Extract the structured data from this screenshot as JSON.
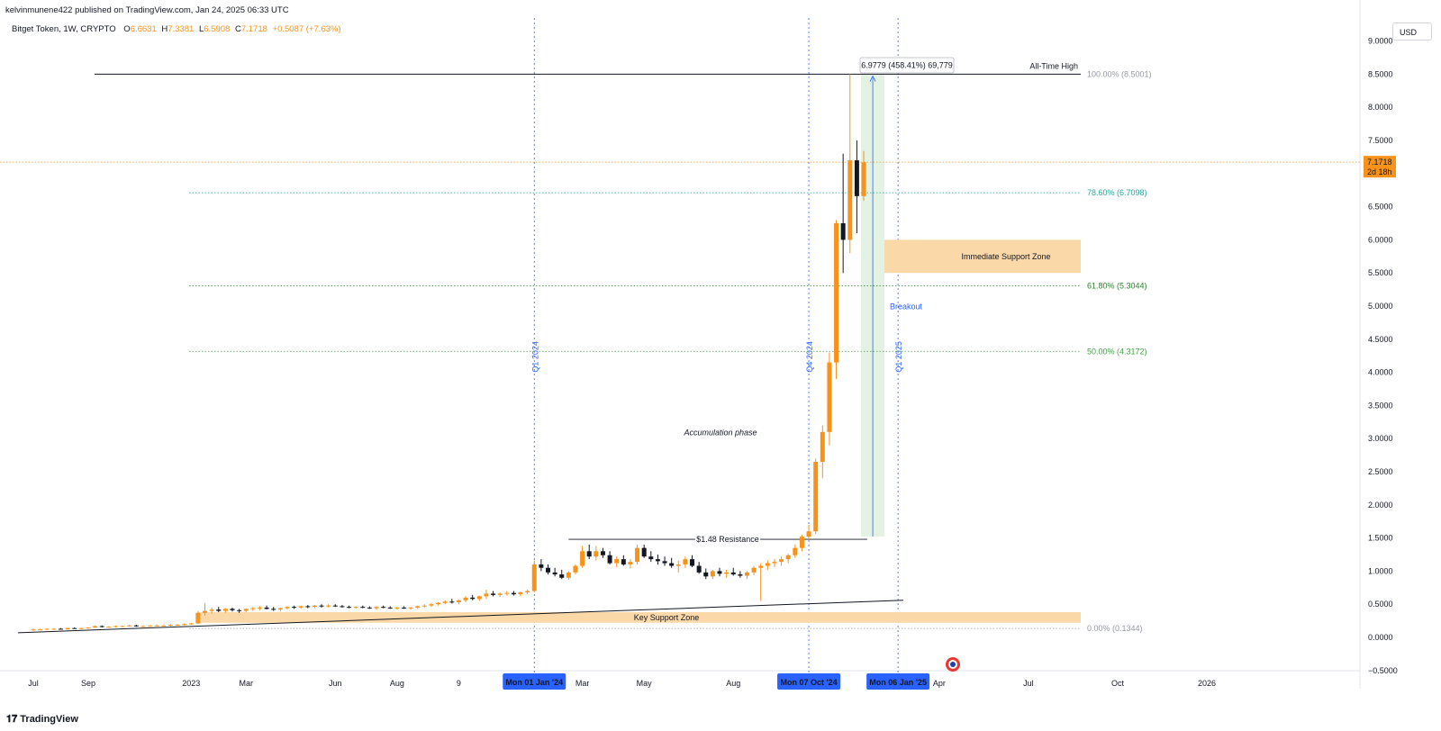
{
  "header": {
    "published": "kelvinmunene422 published on TradingView.com, Jan 24, 2025 06:33 UTC",
    "symbol": "Bitget Token, 1W, CRYPTO",
    "ohlc": {
      "o_label": "O",
      "o": "6.6631",
      "h_label": "H",
      "h": "7.3381",
      "l_label": "L",
      "l": "6.5908",
      "c_label": "C",
      "c": "7.1718",
      "change": "+0.5087 (+7.63%)"
    },
    "currency_button": "USD"
  },
  "footer": {
    "logo_text": "TradingView"
  },
  "colors": {
    "up": "#f7931a",
    "down": "#131722",
    "fib_786": "#26a69a",
    "fib_618": "#2e7d32",
    "fib_50": "#43a047",
    "quarter_line": "#2962ff",
    "support_zone": "#fbd8a8",
    "breakout_fill": "#e3f2e3",
    "price_tag": "#f7931a",
    "date_badge": "#2962ff"
  },
  "chart_data": {
    "type": "candlestick",
    "title": "Bitget Token, 1W, CRYPTO",
    "ylim": [
      -0.5,
      9.0
    ],
    "y_ticks": [
      "9.0000",
      "8.5000",
      "8.0000",
      "7.5000",
      "7.0000",
      "6.5000",
      "6.0000",
      "5.5000",
      "5.0000",
      "4.5000",
      "4.0000",
      "3.5000",
      "3.0000",
      "2.5000",
      "2.0000",
      "1.5000",
      "1.0000",
      "0.5000",
      "0.0000",
      "−0.5000"
    ],
    "y_tick_values": [
      9.0,
      8.5,
      8.0,
      7.5,
      7.0,
      6.5,
      6.0,
      5.5,
      5.0,
      4.5,
      4.0,
      3.5,
      3.0,
      2.5,
      2.0,
      1.5,
      1.0,
      0.5,
      0.0,
      -0.5
    ],
    "x_ticks": [
      {
        "label": "Jul",
        "week": 0
      },
      {
        "label": "Sep",
        "week": 8
      },
      {
        "label": "2023",
        "week": 23
      },
      {
        "label": "Mar",
        "week": 31
      },
      {
        "label": "Jun",
        "week": 44
      },
      {
        "label": "Aug",
        "week": 53
      },
      {
        "label": "9",
        "week": 62
      },
      {
        "label": "Mar",
        "week": 80
      },
      {
        "label": "May",
        "week": 89
      },
      {
        "label": "Aug",
        "week": 102
      },
      {
        "label": "Apr",
        "week": 132
      },
      {
        "label": "Jul",
        "week": 145
      },
      {
        "label": "Oct",
        "week": 158
      },
      {
        "label": "2026",
        "week": 171
      }
    ],
    "date_badges": [
      {
        "label": "Mon 01 Jan '24",
        "week": 73
      },
      {
        "label": "Mon 07 Oct '24",
        "week": 113
      },
      {
        "label": "Mon 06 Jan '25",
        "week": 126
      }
    ],
    "quarter_lines": [
      {
        "label": "Q1 2024",
        "week": 73
      },
      {
        "label": "Q4 2024",
        "week": 113
      },
      {
        "label": "Q1 2025",
        "week": 126
      }
    ],
    "last_price": {
      "value": "7.1718",
      "countdown": "2d 18h",
      "y": 7.1718
    },
    "fib_levels": [
      {
        "label": "100.00% (8.5001)",
        "y": 8.5001
      },
      {
        "label": "78.60% (6.7098)",
        "y": 6.7098
      },
      {
        "label": "61.80% (5.3044)",
        "y": 5.3044
      },
      {
        "label": "50.00% (4.3172)",
        "y": 4.3172
      },
      {
        "label": "0.00% (0.1344)",
        "y": 0.1344
      }
    ],
    "all_time_high": {
      "label": "All-Time High",
      "y": 8.5001
    },
    "resistance": {
      "label": "$1.48 Resistance",
      "y": 1.48
    },
    "immediate_support_zone": {
      "label": "Immediate Support Zone",
      "y_low": 5.5,
      "y_high": 6.0
    },
    "key_support_zone": {
      "label": "Key Support Zone",
      "y_low": 0.22,
      "y_high": 0.38
    },
    "measure": {
      "label": "6.9779 (458.41%) 69,779",
      "from": 1.5222,
      "to": 8.5001
    },
    "annotations": {
      "breakout": "Breakout",
      "accumulation": "Accumulation phase"
    },
    "candles": [
      [
        0.11,
        0.13,
        0.1,
        0.12
      ],
      [
        0.12,
        0.13,
        0.11,
        0.12
      ],
      [
        0.12,
        0.13,
        0.11,
        0.13
      ],
      [
        0.13,
        0.14,
        0.12,
        0.13
      ],
      [
        0.13,
        0.14,
        0.12,
        0.12
      ],
      [
        0.12,
        0.14,
        0.12,
        0.14
      ],
      [
        0.14,
        0.15,
        0.13,
        0.13
      ],
      [
        0.13,
        0.14,
        0.12,
        0.14
      ],
      [
        0.14,
        0.15,
        0.13,
        0.15
      ],
      [
        0.15,
        0.18,
        0.14,
        0.17
      ],
      [
        0.17,
        0.18,
        0.15,
        0.16
      ],
      [
        0.16,
        0.17,
        0.15,
        0.16
      ],
      [
        0.16,
        0.18,
        0.15,
        0.17
      ],
      [
        0.17,
        0.18,
        0.16,
        0.17
      ],
      [
        0.17,
        0.19,
        0.16,
        0.18
      ],
      [
        0.18,
        0.19,
        0.16,
        0.17
      ],
      [
        0.17,
        0.18,
        0.16,
        0.17
      ],
      [
        0.17,
        0.18,
        0.16,
        0.18
      ],
      [
        0.18,
        0.19,
        0.17,
        0.18
      ],
      [
        0.18,
        0.19,
        0.17,
        0.18
      ],
      [
        0.18,
        0.2,
        0.17,
        0.19
      ],
      [
        0.19,
        0.2,
        0.18,
        0.19
      ],
      [
        0.19,
        0.21,
        0.18,
        0.2
      ],
      [
        0.2,
        0.22,
        0.19,
        0.21
      ],
      [
        0.21,
        0.4,
        0.2,
        0.37
      ],
      [
        0.37,
        0.52,
        0.33,
        0.4
      ],
      [
        0.4,
        0.45,
        0.36,
        0.42
      ],
      [
        0.42,
        0.46,
        0.38,
        0.4
      ],
      [
        0.4,
        0.44,
        0.37,
        0.43
      ],
      [
        0.43,
        0.45,
        0.39,
        0.41
      ],
      [
        0.41,
        0.43,
        0.37,
        0.4
      ],
      [
        0.4,
        0.44,
        0.38,
        0.43
      ],
      [
        0.43,
        0.46,
        0.4,
        0.44
      ],
      [
        0.44,
        0.47,
        0.41,
        0.45
      ],
      [
        0.45,
        0.48,
        0.42,
        0.43
      ],
      [
        0.43,
        0.46,
        0.4,
        0.42
      ],
      [
        0.42,
        0.45,
        0.39,
        0.44
      ],
      [
        0.44,
        0.47,
        0.42,
        0.46
      ],
      [
        0.46,
        0.48,
        0.43,
        0.45
      ],
      [
        0.45,
        0.48,
        0.43,
        0.47
      ],
      [
        0.47,
        0.49,
        0.44,
        0.46
      ],
      [
        0.46,
        0.49,
        0.44,
        0.48
      ],
      [
        0.48,
        0.5,
        0.45,
        0.47
      ],
      [
        0.47,
        0.5,
        0.45,
        0.48
      ],
      [
        0.48,
        0.5,
        0.46,
        0.47
      ],
      [
        0.47,
        0.49,
        0.45,
        0.46
      ],
      [
        0.46,
        0.48,
        0.44,
        0.45
      ],
      [
        0.45,
        0.47,
        0.43,
        0.46
      ],
      [
        0.46,
        0.48,
        0.44,
        0.45
      ],
      [
        0.45,
        0.47,
        0.43,
        0.44
      ],
      [
        0.44,
        0.47,
        0.42,
        0.46
      ],
      [
        0.46,
        0.48,
        0.44,
        0.45
      ],
      [
        0.45,
        0.47,
        0.43,
        0.44
      ],
      [
        0.44,
        0.46,
        0.42,
        0.45
      ],
      [
        0.45,
        0.47,
        0.43,
        0.44
      ],
      [
        0.44,
        0.46,
        0.42,
        0.45
      ],
      [
        0.45,
        0.48,
        0.43,
        0.47
      ],
      [
        0.47,
        0.5,
        0.45,
        0.48
      ],
      [
        0.48,
        0.52,
        0.46,
        0.5
      ],
      [
        0.5,
        0.53,
        0.48,
        0.52
      ],
      [
        0.52,
        0.56,
        0.5,
        0.54
      ],
      [
        0.54,
        0.58,
        0.51,
        0.53
      ],
      [
        0.53,
        0.57,
        0.5,
        0.56
      ],
      [
        0.56,
        0.62,
        0.53,
        0.6
      ],
      [
        0.6,
        0.64,
        0.56,
        0.58
      ],
      [
        0.58,
        0.63,
        0.55,
        0.62
      ],
      [
        0.62,
        0.72,
        0.58,
        0.66
      ],
      [
        0.66,
        0.7,
        0.62,
        0.64
      ],
      [
        0.64,
        0.68,
        0.61,
        0.66
      ],
      [
        0.66,
        0.7,
        0.63,
        0.67
      ],
      [
        0.67,
        0.7,
        0.63,
        0.65
      ],
      [
        0.65,
        0.69,
        0.62,
        0.68
      ],
      [
        0.68,
        0.72,
        0.65,
        0.7
      ],
      [
        0.7,
        1.16,
        0.68,
        1.1
      ],
      [
        1.1,
        1.18,
        1.0,
        1.05
      ],
      [
        1.05,
        1.1,
        0.95,
        0.98
      ],
      [
        0.98,
        1.05,
        0.92,
        0.95
      ],
      [
        0.95,
        1.02,
        0.88,
        0.9
      ],
      [
        0.9,
        1.0,
        0.87,
        0.98
      ],
      [
        0.98,
        1.1,
        0.95,
        1.08
      ],
      [
        1.08,
        1.38,
        1.05,
        1.3
      ],
      [
        1.3,
        1.4,
        1.18,
        1.22
      ],
      [
        1.22,
        1.38,
        1.16,
        1.3
      ],
      [
        1.3,
        1.35,
        1.2,
        1.24
      ],
      [
        1.24,
        1.3,
        1.1,
        1.12
      ],
      [
        1.12,
        1.22,
        1.06,
        1.18
      ],
      [
        1.18,
        1.24,
        1.08,
        1.1
      ],
      [
        1.1,
        1.18,
        1.04,
        1.14
      ],
      [
        1.14,
        1.4,
        1.1,
        1.35
      ],
      [
        1.35,
        1.4,
        1.2,
        1.22
      ],
      [
        1.22,
        1.3,
        1.14,
        1.18
      ],
      [
        1.18,
        1.25,
        1.1,
        1.15
      ],
      [
        1.15,
        1.22,
        1.08,
        1.12
      ],
      [
        1.12,
        1.2,
        1.05,
        1.08
      ],
      [
        1.08,
        1.16,
        0.98,
        1.1
      ],
      [
        1.1,
        1.22,
        1.05,
        1.18
      ],
      [
        1.18,
        1.24,
        1.06,
        1.08
      ],
      [
        1.08,
        1.14,
        0.96,
        0.98
      ],
      [
        0.98,
        1.04,
        0.88,
        0.92
      ],
      [
        0.92,
        1.02,
        0.88,
        1.0
      ],
      [
        1.0,
        1.05,
        0.92,
        0.96
      ],
      [
        0.96,
        1.02,
        0.9,
        0.98
      ],
      [
        0.98,
        1.05,
        0.93,
        0.95
      ],
      [
        0.95,
        1.0,
        0.9,
        0.93
      ],
      [
        0.93,
        1.0,
        0.88,
        0.98
      ],
      [
        0.98,
        1.08,
        0.94,
        1.05
      ],
      [
        1.05,
        1.12,
        0.55,
        1.08
      ],
      [
        1.08,
        1.16,
        1.02,
        1.12
      ],
      [
        1.12,
        1.18,
        1.06,
        1.14
      ],
      [
        1.14,
        1.22,
        1.08,
        1.18
      ],
      [
        1.18,
        1.26,
        1.12,
        1.24
      ],
      [
        1.24,
        1.4,
        1.2,
        1.35
      ],
      [
        1.35,
        1.55,
        1.3,
        1.52
      ],
      [
        1.52,
        1.7,
        1.48,
        1.6
      ],
      [
        1.6,
        2.7,
        1.56,
        2.65
      ],
      [
        2.65,
        3.2,
        2.4,
        3.1
      ],
      [
        3.1,
        4.3,
        2.9,
        4.15
      ],
      [
        4.15,
        6.3,
        3.9,
        6.25
      ],
      [
        6.25,
        7.3,
        5.5,
        6.0
      ],
      [
        6.0,
        8.5,
        5.8,
        7.2
      ],
      [
        7.2,
        7.5,
        6.1,
        6.66
      ],
      [
        6.66,
        7.34,
        6.59,
        7.17
      ]
    ]
  }
}
